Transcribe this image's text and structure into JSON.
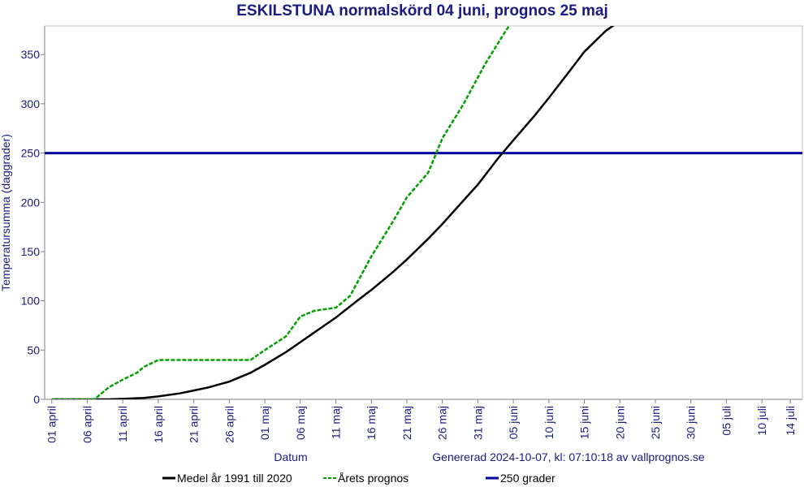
{
  "chart_data": {
    "type": "line",
    "title": "ESKILSTUNA normalskörd 04 juni, prognos 25 maj",
    "y_label": "Temperatursumma (daggrader)",
    "x_label": "Datum",
    "note": "Genererad 2024-10-07, kl: 07:10:18 av vallprognos.se",
    "xlim": [
      -1,
      105.7
    ],
    "ylim": [
      0,
      379
    ],
    "yticks": [
      0,
      50,
      100,
      150,
      200,
      250,
      300,
      350
    ],
    "xticks": [
      {
        "value": 0,
        "label": "01 april"
      },
      {
        "value": 5,
        "label": "06 april"
      },
      {
        "value": 10,
        "label": "11 april"
      },
      {
        "value": 15,
        "label": "16 april"
      },
      {
        "value": 20,
        "label": "21 april"
      },
      {
        "value": 25,
        "label": "26 april"
      },
      {
        "value": 30,
        "label": "01 maj"
      },
      {
        "value": 35,
        "label": "06 maj"
      },
      {
        "value": 40,
        "label": "11 maj"
      },
      {
        "value": 45,
        "label": "16 maj"
      },
      {
        "value": 50,
        "label": "21 maj"
      },
      {
        "value": 55,
        "label": "26 maj"
      },
      {
        "value": 60,
        "label": "31 maj"
      },
      {
        "value": 65,
        "label": "05 juni"
      },
      {
        "value": 70,
        "label": "10 juni"
      },
      {
        "value": 75,
        "label": "15 juni"
      },
      {
        "value": 80,
        "label": "20 juni"
      },
      {
        "value": 85,
        "label": "25 juni"
      },
      {
        "value": 90,
        "label": "30 juni"
      },
      {
        "value": 95,
        "label": "05 juli"
      },
      {
        "value": 100,
        "label": "10 juli"
      },
      {
        "value": 104,
        "label": "14 juli"
      }
    ],
    "series": [
      {
        "name": "Medel år 1991 till 2020",
        "color": "#000000",
        "dash": false,
        "x": [
          0,
          5,
          8,
          10,
          13,
          15,
          18,
          20,
          22,
          25,
          28,
          30,
          33,
          35,
          38,
          40,
          43,
          45,
          48,
          50,
          53,
          55,
          58,
          60,
          63,
          65,
          68,
          70,
          73,
          75,
          78,
          80
        ],
        "values": [
          0,
          0,
          0,
          0.5,
          1.5,
          3,
          6,
          9,
          12,
          18,
          27,
          35,
          48,
          58,
          73,
          83,
          100,
          111,
          129,
          142,
          163,
          178,
          202,
          218,
          246,
          263,
          288,
          306,
          334,
          353,
          374,
          384
        ]
      },
      {
        "name": "Årets prognos",
        "color": "#00a000",
        "dash": true,
        "x": [
          0,
          6,
          8,
          10,
          12,
          13,
          15,
          18,
          22,
          25,
          28,
          30,
          33,
          35,
          37,
          40,
          42,
          45,
          48,
          50,
          53,
          55,
          58,
          61,
          64,
          65
        ],
        "values": [
          0,
          0,
          12,
          20,
          27,
          33,
          40,
          40,
          40,
          40,
          40,
          50,
          64,
          84,
          90,
          93,
          105,
          145,
          180,
          205,
          230,
          265,
          300,
          340,
          375,
          385
        ]
      }
    ],
    "reference_lines": [
      {
        "name": "250 grader",
        "value": 250,
        "color": "#0000a0"
      }
    ]
  }
}
